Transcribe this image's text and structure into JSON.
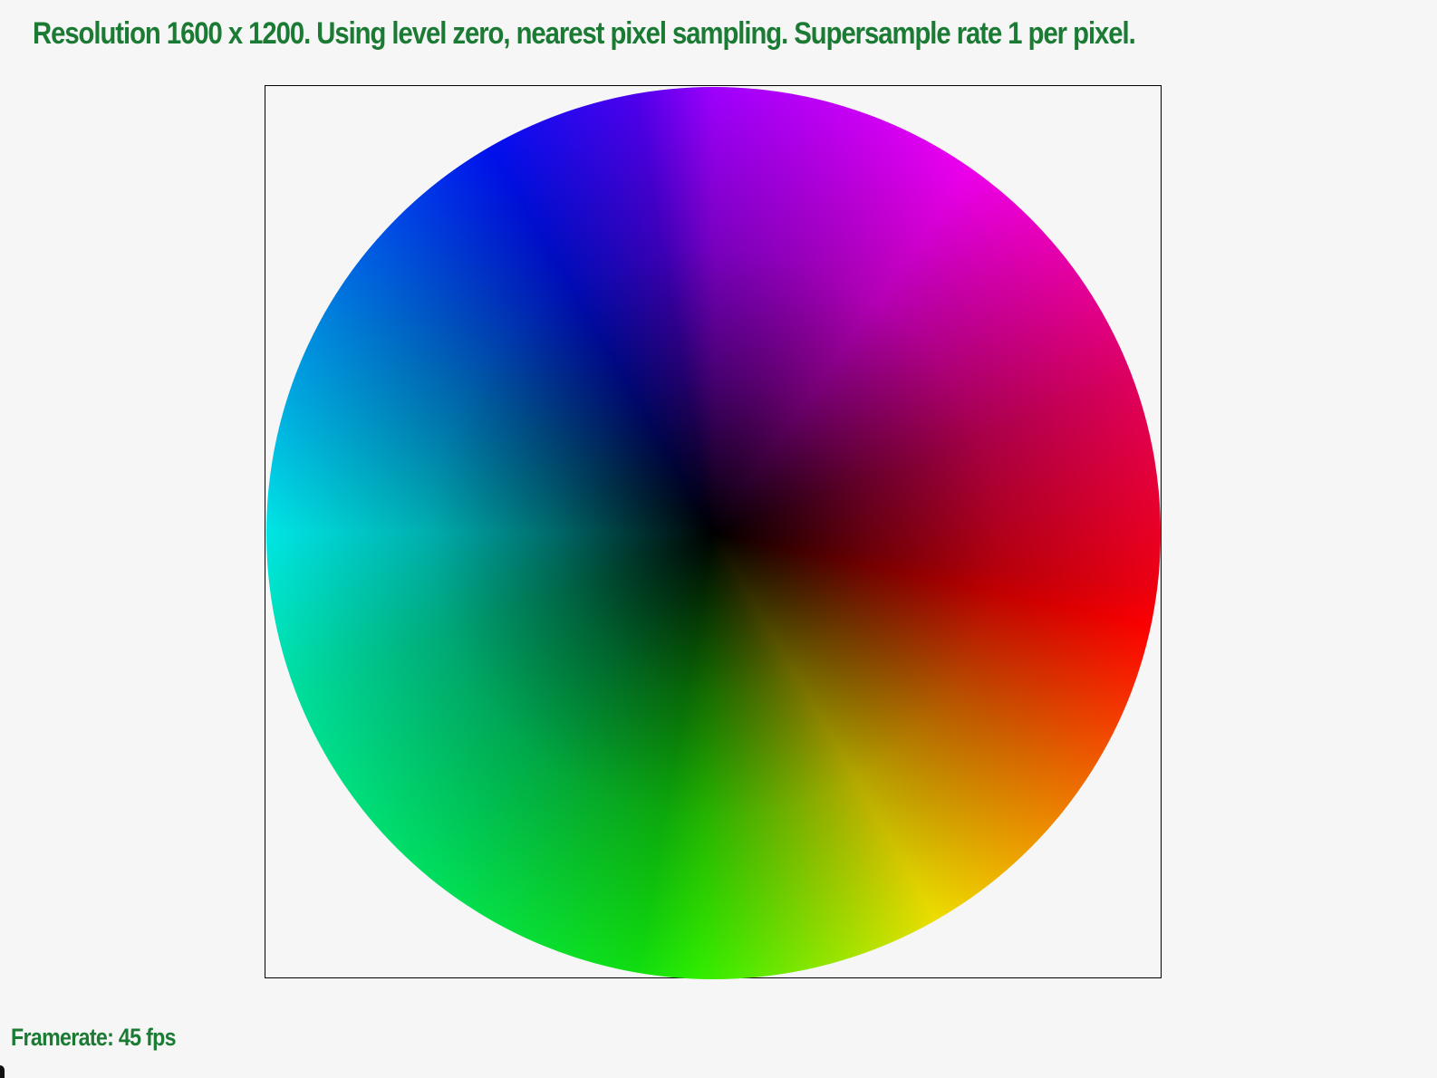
{
  "header": {
    "status_text": "Resolution 1600 x 1200. Using level zero, nearest pixel sampling. Supersample rate 1 per pixel."
  },
  "footer": {
    "framerate_text": "Framerate: 45 fps"
  },
  "colors": {
    "text": "#1b7a33",
    "background": "#f6f6f6",
    "viewport_border": "#000000"
  }
}
